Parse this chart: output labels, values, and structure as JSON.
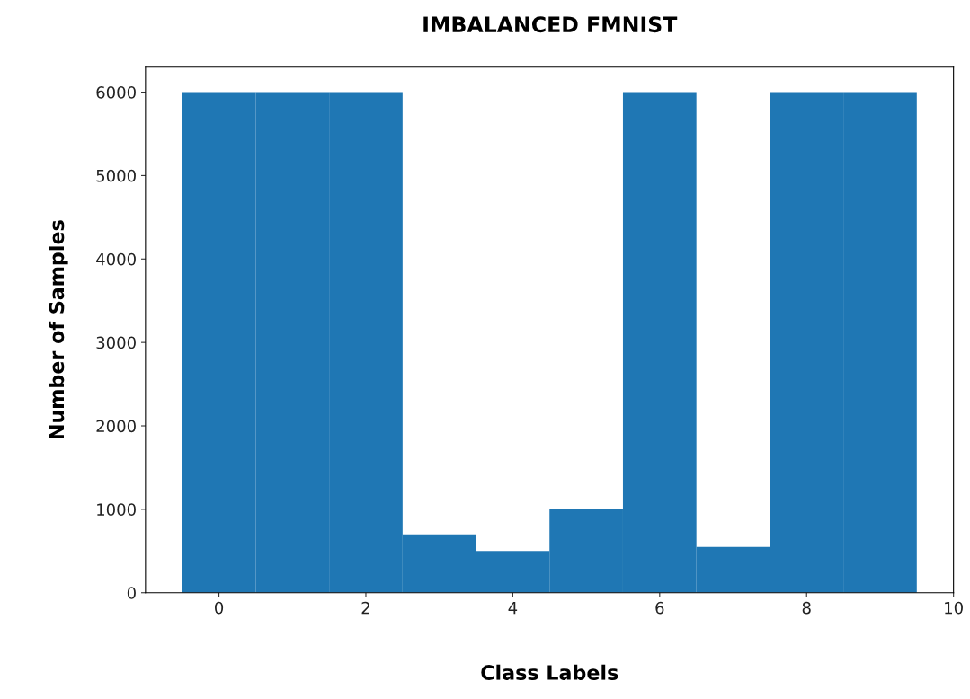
{
  "chart_data": {
    "type": "histogram",
    "title": "IMBALANCED FMNIST",
    "xlabel": "Class Labels",
    "ylabel": "Number of Samples",
    "bins": [
      -0.5,
      0.5,
      1.5,
      2.5,
      3.5,
      4.5,
      5.5,
      6.5,
      7.5,
      8.5,
      9.5
    ],
    "values": [
      6000,
      6000,
      6000,
      700,
      500,
      1000,
      6000,
      550,
      6000,
      6000
    ],
    "color": "#1f77b4",
    "xlim": [
      -1,
      10
    ],
    "xticks": [
      0,
      2,
      4,
      6,
      8,
      10
    ],
    "ylim": [
      0,
      6300
    ],
    "yticks": [
      0,
      1000,
      2000,
      3000,
      4000,
      5000,
      6000
    ],
    "grid": false
  }
}
